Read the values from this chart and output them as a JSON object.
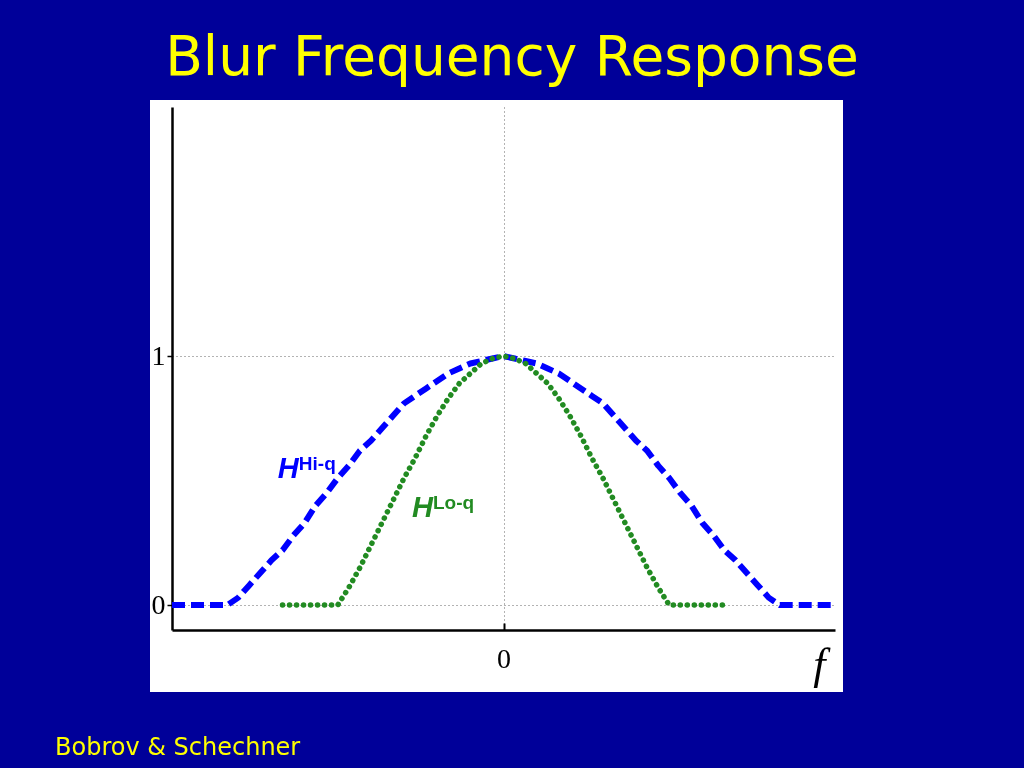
{
  "chart_data": {
    "type": "line",
    "title": "Blur Frequency Response",
    "xlabel": "f",
    "categories": [
      null,
      null,
      null,
      null,
      null,
      null,
      null,
      null,
      null,
      null,
      null,
      null,
      null,
      null,
      null,
      null,
      null,
      null,
      null,
      null,
      null,
      null,
      null,
      null,
      null,
      null,
      null,
      null,
      null,
      null,
      "0",
      null,
      null,
      null,
      null,
      null,
      null,
      null,
      null,
      null,
      null,
      null,
      null,
      null,
      null,
      null,
      null,
      null,
      null,
      null,
      null,
      null,
      null,
      null,
      null,
      null,
      null,
      null,
      null,
      null,
      null
    ],
    "series": [
      {
        "name": "H$^{Hi-q}$",
        "color": "#0000ff",
        "line_style": "dashed",
        "values": [
          0,
          0,
          0,
          0,
          0,
          0,
          0.03,
          0.08,
          0.13,
          0.18,
          0.22,
          0.28,
          0.33,
          0.4,
          0.45,
          0.51,
          0.56,
          0.62,
          0.66,
          0.71,
          0.76,
          0.81,
          0.84,
          0.87,
          0.9,
          0.93,
          0.95,
          0.97,
          0.98,
          0.99,
          1,
          0.99,
          0.98,
          0.97,
          0.95,
          0.93,
          0.9,
          0.87,
          0.84,
          0.81,
          0.76,
          0.71,
          0.66,
          0.62,
          0.56,
          0.51,
          0.45,
          0.4,
          0.33,
          0.28,
          0.22,
          0.18,
          0.13,
          0.08,
          0.03,
          0,
          0,
          0,
          0,
          0,
          0
        ]
      },
      {
        "name": "H$^{Lo-q}$",
        "color": "#228b22",
        "line_style": "dotted",
        "values": [
          null,
          null,
          null,
          null,
          null,
          null,
          null,
          null,
          null,
          null,
          0,
          0,
          0,
          0,
          0,
          0,
          0.07,
          0.15,
          0.24,
          0.33,
          0.42,
          0.51,
          0.59,
          0.68,
          0.76,
          0.83,
          0.89,
          0.93,
          0.97,
          0.99,
          1,
          0.99,
          0.97,
          0.93,
          0.89,
          0.83,
          0.76,
          0.68,
          0.59,
          0.51,
          0.42,
          0.33,
          0.24,
          0.15,
          0.07,
          0,
          0,
          0,
          0,
          0,
          0,
          null,
          null,
          null,
          null,
          null,
          null,
          null,
          null,
          null,
          null
        ]
      }
    ],
    "ylim": [
      -0.1,
      2
    ],
    "yticks": [
      0,
      1
    ],
    "grid": true,
    "annotations": [
      "Bobrov & Schechner"
    ]
  }
}
